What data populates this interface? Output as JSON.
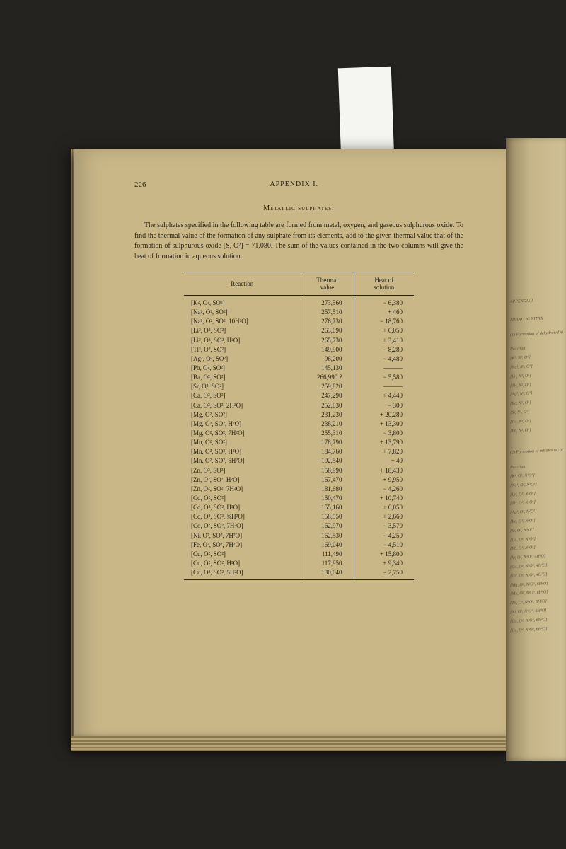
{
  "page": {
    "number": "226",
    "header": "APPENDIX I.",
    "section_title": "Metallic sulphates.",
    "intro": "The sulphates specified in the following table are formed from metal, oxygen, and gaseous sulphurous oxide. To find the thermal value of the formation of any sulphate from its elements, add to the given thermal value that of the formation of sulphurous oxide [S, O²] = 71,080. The sum of the values contained in the two columns will give the heat of formation in aqueous solution."
  },
  "table": {
    "headers": {
      "reaction": "Reaction",
      "thermal": "Thermal value",
      "heat": "Heat of solution"
    },
    "rows": [
      {
        "r": "[K², O², SO²]",
        "t": "273,560",
        "h": "− 6,380"
      },
      {
        "r": "[Na², O², SO²]",
        "t": "257,510",
        "h": "+ 460"
      },
      {
        "r": "[Na², O², SO², 10H²O]",
        "t": "276,730",
        "h": "− 18,760"
      },
      {
        "r": "[Li², O², SO²]",
        "t": "263,090",
        "h": "+ 6,050"
      },
      {
        "r": "[Li², O², SO², H²O]",
        "t": "265,730",
        "h": "+ 3,410"
      },
      {
        "r": "[Tl², O², SO²]",
        "t": "149,900",
        "h": "− 8,280"
      },
      {
        "r": "[Ag², O², SO²]",
        "t": "96,200",
        "h": "− 4,480"
      },
      {
        "r": "[Pb, O², SO²]",
        "t": "145,130",
        "h": "———"
      },
      {
        "r": "[Ba, O², SO²]",
        "t": "266,990 ?",
        "h": "− 5,580"
      },
      {
        "r": "[Sr, O², SO²]",
        "t": "259,820",
        "h": "———"
      },
      {
        "r": "[Ca, O², SO²]",
        "t": "247,290",
        "h": "+ 4,440"
      },
      {
        "r": "[Ca, O², SO², 2H²O]",
        "t": "252,030",
        "h": "− 300"
      },
      {
        "r": "[Mg, O², SO²]",
        "t": "231,230",
        "h": "+ 20,280"
      },
      {
        "r": "[Mg, O², SO², H²O]",
        "t": "238,210",
        "h": "+ 13,300"
      },
      {
        "r": "[Mg, O², SO², 7H²O]",
        "t": "255,310",
        "h": "− 3,800"
      },
      {
        "r": "[Mn, O², SO²]",
        "t": "178,790",
        "h": "+ 13,790"
      },
      {
        "r": "[Mn, O², SO², H²O]",
        "t": "184,760",
        "h": "+ 7,820"
      },
      {
        "r": "[Mn, O², SO², 5H²O]",
        "t": "192,540",
        "h": "+ 40"
      },
      {
        "r": "[Zn, O², SO²]",
        "t": "158,990",
        "h": "+ 18,430"
      },
      {
        "r": "[Zn, O², SO², H²O]",
        "t": "167,470",
        "h": "+ 9,950"
      },
      {
        "r": "[Zn, O², SO², 7H²O]",
        "t": "181,680",
        "h": "− 4,260"
      },
      {
        "r": "[Cd, O², SO²]",
        "t": "150,470",
        "h": "+ 10,740"
      },
      {
        "r": "[Cd, O², SO², H²O]",
        "t": "155,160",
        "h": "+ 6,050"
      },
      {
        "r": "[Cd, O², SO², ⅝H²O]",
        "t": "158,550",
        "h": "+ 2,660"
      },
      {
        "r": "[Co, O², SO², 7H²O]",
        "t": "162,970",
        "h": "− 3,570"
      },
      {
        "r": "[Ni, O², SO², 7H²O]",
        "t": "162,530",
        "h": "− 4,250"
      },
      {
        "r": "[Fe, O², SO², 7H²O]",
        "t": "169,040",
        "h": "− 4,510"
      },
      {
        "r": "[Cu, O², SO²]",
        "t": "111,490",
        "h": "+ 15,800"
      },
      {
        "r": "[Cu, O², SO², H²O]",
        "t": "117,950",
        "h": "+ 9,340"
      },
      {
        "r": "[Cu, O², SO², 5H²O]",
        "t": "130,040",
        "h": "− 2,750"
      }
    ]
  },
  "right_page": {
    "header": "APPENDIX I.",
    "title": "METALLIC NITRA",
    "subtitle": "(1) Formation of dehydrated nitrate",
    "col_header": "Reaction",
    "rows": [
      "[K², N², O⁵]",
      "[Na², N², O⁵]",
      "[Li², N², O⁵]",
      "[Tl², N², O⁵]",
      "[Ag², N², O⁵]",
      "[Ba, N², O⁵]",
      "[Sr, N², O⁵]",
      "[Ca, N², O⁵]",
      "[Pb, N², O⁵]"
    ],
    "subtitle2": "(2) Formation of nitrates according",
    "rows2": [
      "[K², O², N²O⁵]",
      "[Na², O², N²O⁵]",
      "[Li², O², N²O⁵]",
      "[Tl², O², N²O⁵]",
      "[Ag², O², N²O⁵]",
      "[Ba, O², N²O⁵]",
      "[Sr, O², N²O⁵]",
      "[Ca, O², N²O⁵]",
      "[Pb, O², N²O⁵]",
      "[Sr, O², N²O⁵, 4H²O]",
      "[Ca, O², N²O⁵, 4H²O]",
      "[Cd, O², N²O⁵, 4H²O]",
      "[Mg, O², N²O⁵, 6H²O]",
      "[Mn, O², N²O⁵, 6H²O]",
      "[Zn, O², N²O⁵, 6H²O]",
      "[Ni, O², N²O⁵, 6H²O]",
      "[Co, O², N²O⁵, 6H²O]",
      "[Cu, O², N²O⁵, 6H²O]"
    ]
  },
  "colors": {
    "page_bg": "#c9b788",
    "text": "#2a2418",
    "dark_bg": "#1a1a18"
  }
}
